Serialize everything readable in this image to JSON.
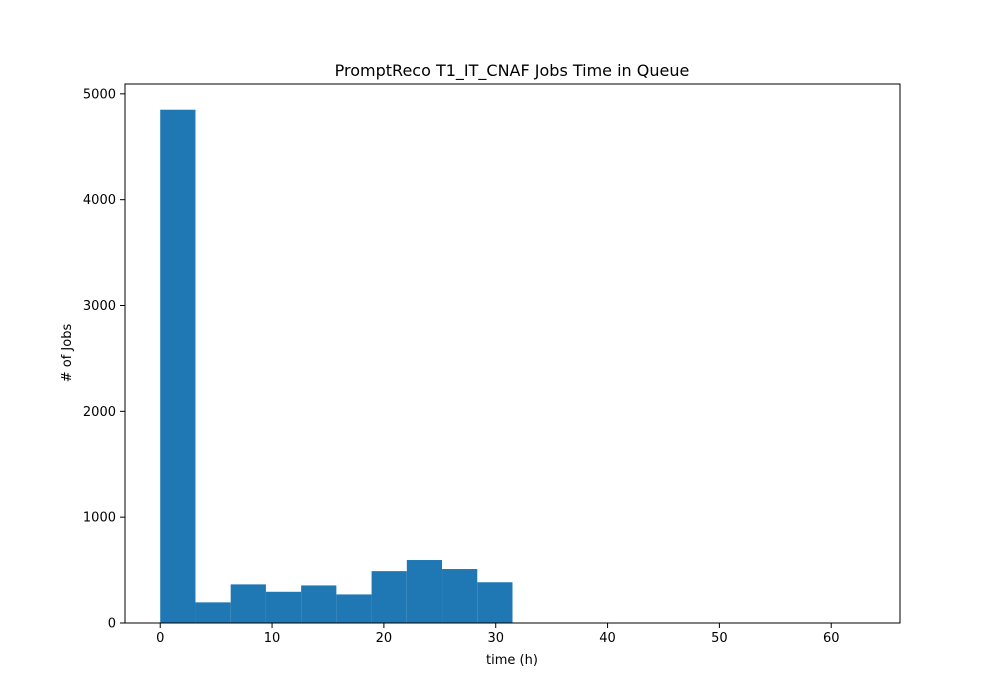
{
  "chart_data": {
    "type": "bar",
    "title": "PromptReco T1_IT_CNAF Jobs Time in Queue",
    "xlabel": "time (h)",
    "ylabel": "# of Jobs",
    "xlim": [
      -3.15,
      66.15
    ],
    "ylim": [
      0,
      5093
    ],
    "xticks": [
      0,
      10,
      20,
      30,
      40,
      50,
      60
    ],
    "yticks": [
      0,
      1000,
      2000,
      3000,
      4000,
      5000
    ],
    "grid": false,
    "legend": "none",
    "bar_color": "#1f77b4",
    "bins": [
      {
        "start": 0,
        "end": 3.15,
        "value": 4850
      },
      {
        "start": 3.15,
        "end": 6.3,
        "value": 195
      },
      {
        "start": 6.3,
        "end": 9.45,
        "value": 365
      },
      {
        "start": 9.45,
        "end": 12.6,
        "value": 295
      },
      {
        "start": 12.6,
        "end": 15.75,
        "value": 355
      },
      {
        "start": 15.75,
        "end": 18.9,
        "value": 270
      },
      {
        "start": 18.9,
        "end": 22.05,
        "value": 490
      },
      {
        "start": 22.05,
        "end": 25.2,
        "value": 595
      },
      {
        "start": 25.2,
        "end": 28.35,
        "value": 510
      },
      {
        "start": 28.35,
        "end": 31.5,
        "value": 385
      }
    ]
  }
}
